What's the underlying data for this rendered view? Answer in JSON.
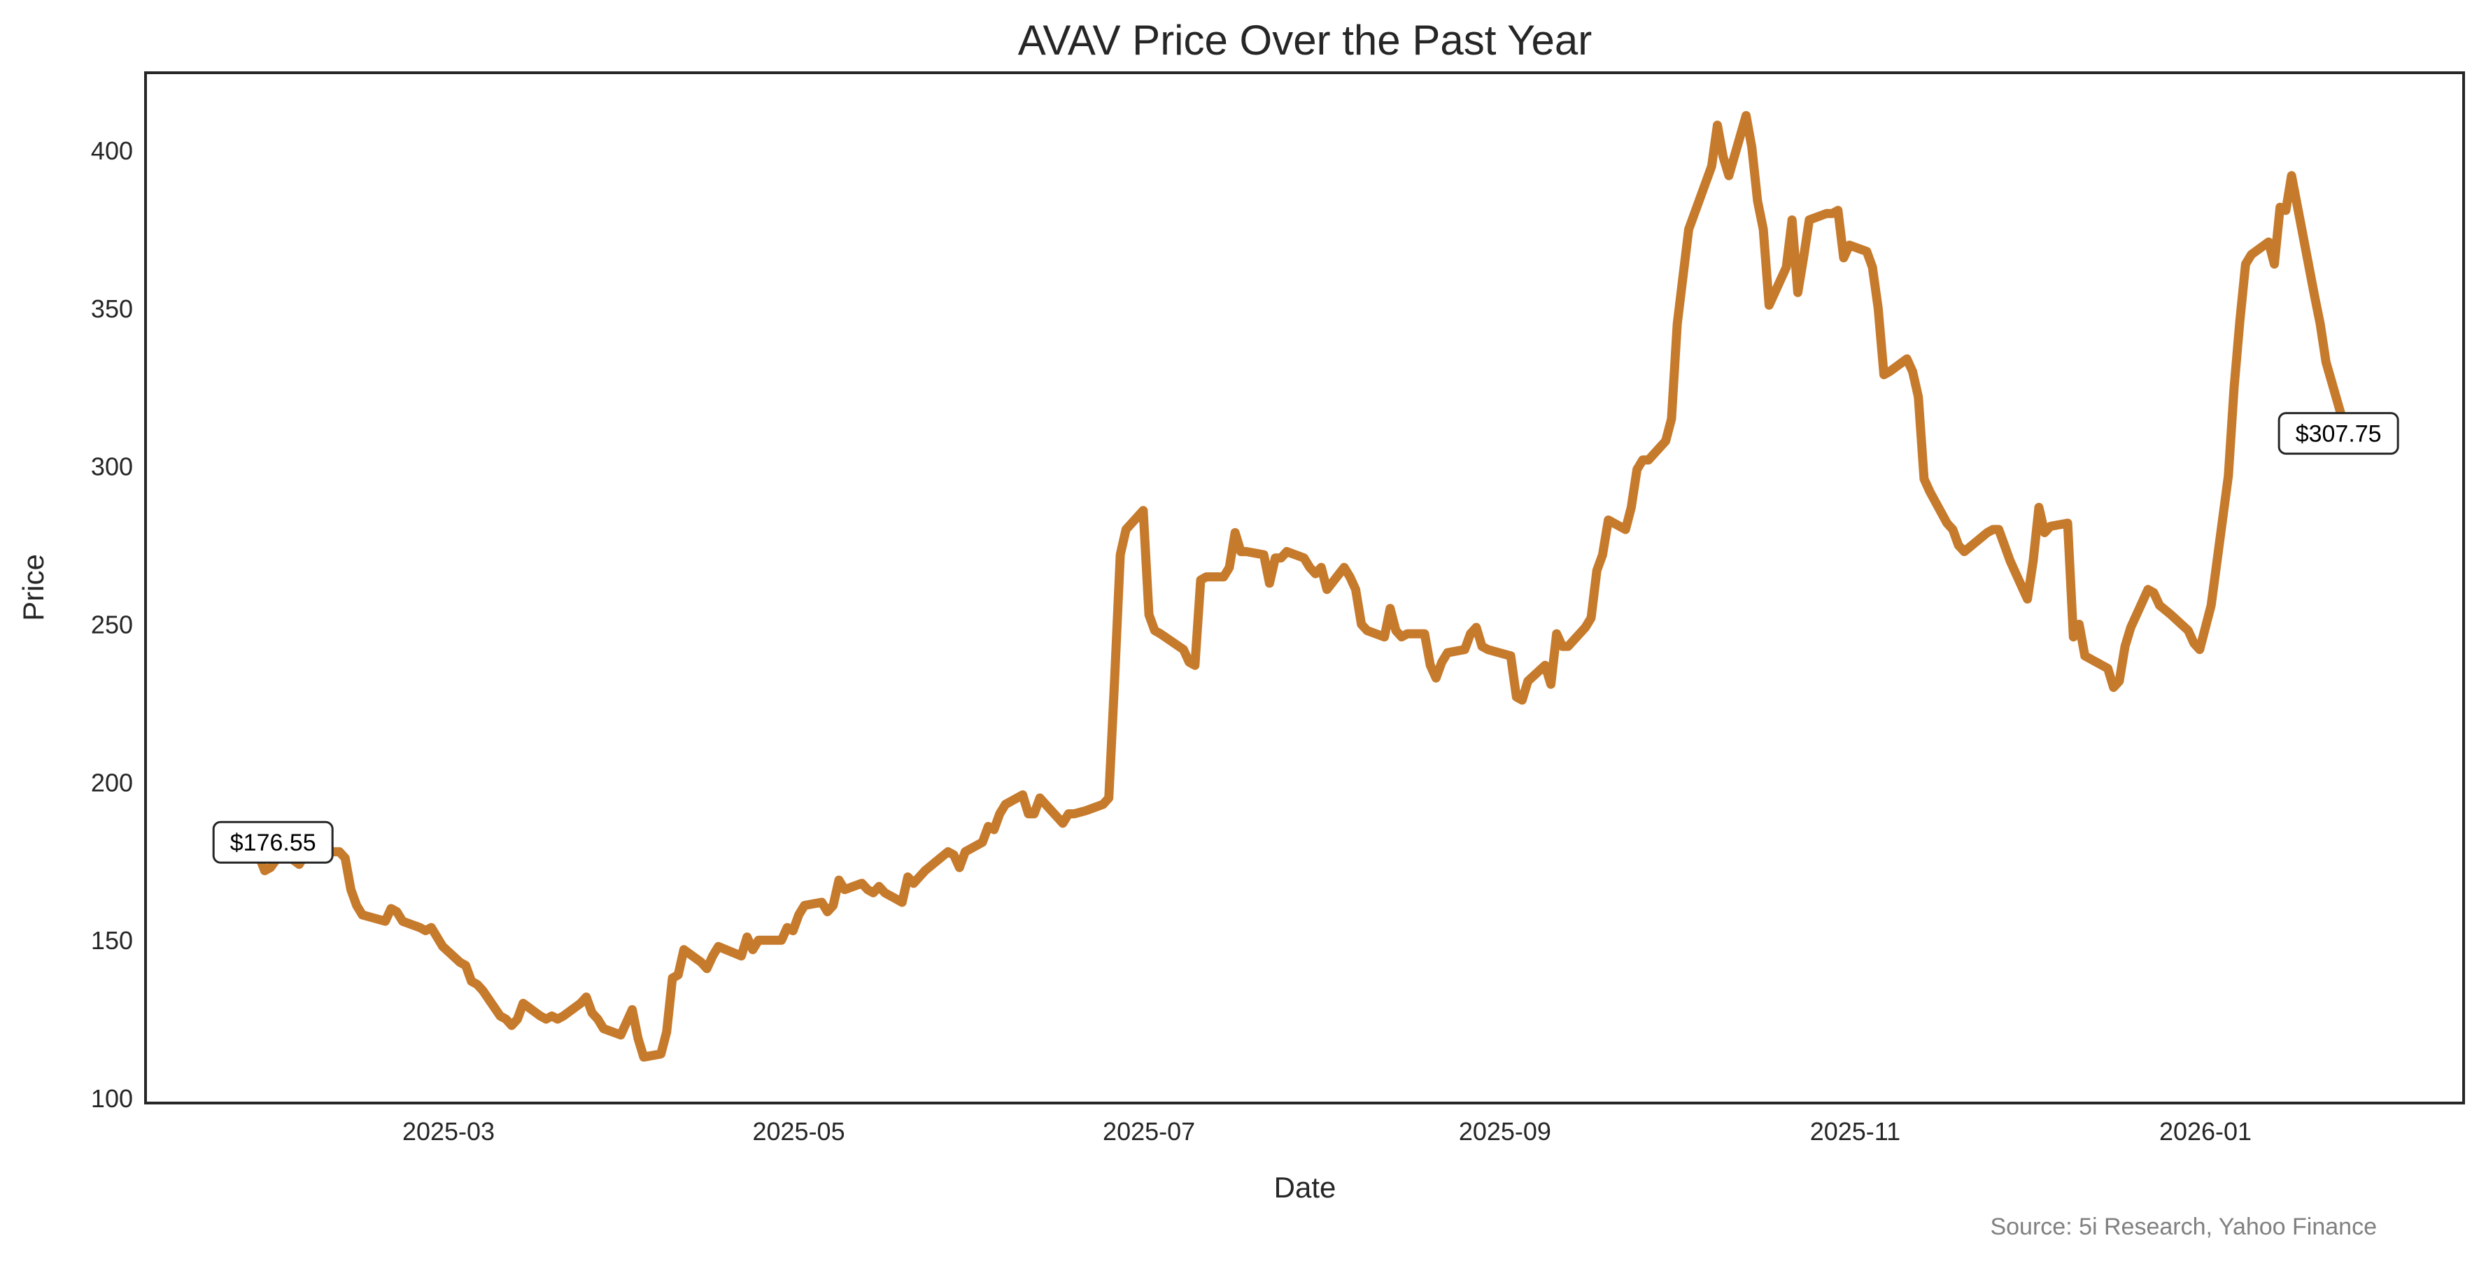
{
  "chart_data": {
    "type": "line",
    "title": "AVAV Price Over the Past Year",
    "xlabel": "Date",
    "ylabel": "Price",
    "source": "Source: 5i Research, Yahoo Finance",
    "line_color": "#C67A2C",
    "grid": false,
    "ylim": [
      97,
      425
    ],
    "xlim": [
      "2025-01-13",
      "2026-02-08"
    ],
    "yticks": [
      100,
      150,
      200,
      250,
      300,
      350,
      400
    ],
    "xticks": [
      "2025-03",
      "2025-05",
      "2025-07",
      "2025-09",
      "2025-11",
      "2026-01"
    ],
    "annotations": [
      {
        "label": "$176.55",
        "date": "2025-01-27",
        "value": 176.55
      },
      {
        "label": "$307.75",
        "date": "2026-01-26",
        "value": 307.75
      }
    ],
    "series": [
      {
        "points": [
          [
            "2025-01-27",
            176.55
          ],
          [
            "2025-01-28",
            172
          ],
          [
            "2025-01-29",
            173
          ],
          [
            "2025-01-31",
            178
          ],
          [
            "2025-02-03",
            174
          ],
          [
            "2025-02-04",
            177
          ],
          [
            "2025-02-05",
            178
          ],
          [
            "2025-02-07",
            178
          ],
          [
            "2025-02-10",
            178
          ],
          [
            "2025-02-11",
            176
          ],
          [
            "2025-02-12",
            166
          ],
          [
            "2025-02-13",
            161
          ],
          [
            "2025-02-14",
            158
          ],
          [
            "2025-02-18",
            156
          ],
          [
            "2025-02-19",
            160
          ],
          [
            "2025-02-20",
            159
          ],
          [
            "2025-02-21",
            156
          ],
          [
            "2025-02-24",
            154
          ],
          [
            "2025-02-25",
            153
          ],
          [
            "2025-02-26",
            154
          ],
          [
            "2025-02-27",
            151
          ],
          [
            "2025-02-28",
            148
          ],
          [
            "2025-03-03",
            143
          ],
          [
            "2025-03-04",
            142
          ],
          [
            "2025-03-05",
            137
          ],
          [
            "2025-03-06",
            136
          ],
          [
            "2025-03-07",
            134
          ],
          [
            "2025-03-10",
            126
          ],
          [
            "2025-03-11",
            125
          ],
          [
            "2025-03-12",
            123
          ],
          [
            "2025-03-13",
            125
          ],
          [
            "2025-03-14",
            130
          ],
          [
            "2025-03-17",
            126
          ],
          [
            "2025-03-18",
            125
          ],
          [
            "2025-03-19",
            126
          ],
          [
            "2025-03-20",
            125
          ],
          [
            "2025-03-21",
            126
          ],
          [
            "2025-03-24",
            130
          ],
          [
            "2025-03-25",
            132
          ],
          [
            "2025-03-26",
            127
          ],
          [
            "2025-03-27",
            125
          ],
          [
            "2025-03-28",
            122
          ],
          [
            "2025-03-31",
            120
          ],
          [
            "2025-04-01",
            124
          ],
          [
            "2025-04-02",
            128
          ],
          [
            "2025-04-03",
            119
          ],
          [
            "2025-04-04",
            113
          ],
          [
            "2025-04-07",
            114
          ],
          [
            "2025-04-08",
            121
          ],
          [
            "2025-04-09",
            138
          ],
          [
            "2025-04-10",
            139
          ],
          [
            "2025-04-11",
            147
          ],
          [
            "2025-04-14",
            143
          ],
          [
            "2025-04-15",
            141
          ],
          [
            "2025-04-16",
            145
          ],
          [
            "2025-04-17",
            148
          ],
          [
            "2025-04-21",
            145
          ],
          [
            "2025-04-22",
            151
          ],
          [
            "2025-04-23",
            147
          ],
          [
            "2025-04-24",
            150
          ],
          [
            "2025-04-25",
            150
          ],
          [
            "2025-04-28",
            150
          ],
          [
            "2025-04-29",
            154
          ],
          [
            "2025-04-30",
            153
          ],
          [
            "2025-05-01",
            158
          ],
          [
            "2025-05-02",
            161
          ],
          [
            "2025-05-05",
            162
          ],
          [
            "2025-05-06",
            159
          ],
          [
            "2025-05-07",
            161
          ],
          [
            "2025-05-08",
            169
          ],
          [
            "2025-05-09",
            166
          ],
          [
            "2025-05-12",
            168
          ],
          [
            "2025-05-13",
            166
          ],
          [
            "2025-05-14",
            165
          ],
          [
            "2025-05-15",
            167
          ],
          [
            "2025-05-16",
            165
          ],
          [
            "2025-05-19",
            162
          ],
          [
            "2025-05-20",
            170
          ],
          [
            "2025-05-21",
            168
          ],
          [
            "2025-05-22",
            170
          ],
          [
            "2025-05-23",
            172
          ],
          [
            "2025-05-27",
            178
          ],
          [
            "2025-05-28",
            177
          ],
          [
            "2025-05-29",
            173
          ],
          [
            "2025-05-30",
            178
          ],
          [
            "2025-06-02",
            181
          ],
          [
            "2025-06-03",
            186
          ],
          [
            "2025-06-04",
            185
          ],
          [
            "2025-06-05",
            190
          ],
          [
            "2025-06-06",
            193
          ],
          [
            "2025-06-09",
            196
          ],
          [
            "2025-06-10",
            190
          ],
          [
            "2025-06-11",
            190
          ],
          [
            "2025-06-12",
            195
          ],
          [
            "2025-06-13",
            193
          ],
          [
            "2025-06-16",
            187
          ],
          [
            "2025-06-17",
            190
          ],
          [
            "2025-06-18",
            190
          ],
          [
            "2025-06-20",
            191
          ],
          [
            "2025-06-23",
            193
          ],
          [
            "2025-06-24",
            195
          ],
          [
            "2025-06-25",
            232
          ],
          [
            "2025-06-26",
            272
          ],
          [
            "2025-06-27",
            280
          ],
          [
            "2025-06-30",
            286
          ],
          [
            "2025-07-01",
            253
          ],
          [
            "2025-07-02",
            248
          ],
          [
            "2025-07-03",
            247
          ],
          [
            "2025-07-07",
            242
          ],
          [
            "2025-07-08",
            238
          ],
          [
            "2025-07-09",
            237
          ],
          [
            "2025-07-10",
            264
          ],
          [
            "2025-07-11",
            265
          ],
          [
            "2025-07-14",
            265
          ],
          [
            "2025-07-15",
            268
          ],
          [
            "2025-07-16",
            279
          ],
          [
            "2025-07-17",
            273
          ],
          [
            "2025-07-18",
            273
          ],
          [
            "2025-07-21",
            272
          ],
          [
            "2025-07-22",
            263
          ],
          [
            "2025-07-23",
            271
          ],
          [
            "2025-07-24",
            271
          ],
          [
            "2025-07-25",
            273
          ],
          [
            "2025-07-28",
            271
          ],
          [
            "2025-07-29",
            268
          ],
          [
            "2025-07-30",
            266
          ],
          [
            "2025-07-31",
            268
          ],
          [
            "2025-08-01",
            261
          ],
          [
            "2025-08-04",
            268
          ],
          [
            "2025-08-05",
            265
          ],
          [
            "2025-08-06",
            261
          ],
          [
            "2025-08-07",
            250
          ],
          [
            "2025-08-08",
            248
          ],
          [
            "2025-08-11",
            246
          ],
          [
            "2025-08-12",
            255
          ],
          [
            "2025-08-13",
            248
          ],
          [
            "2025-08-14",
            246
          ],
          [
            "2025-08-15",
            247
          ],
          [
            "2025-08-18",
            247
          ],
          [
            "2025-08-19",
            237
          ],
          [
            "2025-08-20",
            233
          ],
          [
            "2025-08-21",
            238
          ],
          [
            "2025-08-22",
            241
          ],
          [
            "2025-08-25",
            242
          ],
          [
            "2025-08-26",
            247
          ],
          [
            "2025-08-27",
            249
          ],
          [
            "2025-08-28",
            243
          ],
          [
            "2025-08-29",
            242
          ],
          [
            "2025-09-02",
            240
          ],
          [
            "2025-09-03",
            227
          ],
          [
            "2025-09-04",
            226
          ],
          [
            "2025-09-05",
            232
          ],
          [
            "2025-09-08",
            237
          ],
          [
            "2025-09-09",
            231
          ],
          [
            "2025-09-10",
            247
          ],
          [
            "2025-09-11",
            243
          ],
          [
            "2025-09-12",
            243
          ],
          [
            "2025-09-15",
            249
          ],
          [
            "2025-09-16",
            252
          ],
          [
            "2025-09-17",
            267
          ],
          [
            "2025-09-18",
            272
          ],
          [
            "2025-09-19",
            283
          ],
          [
            "2025-09-22",
            280
          ],
          [
            "2025-09-23",
            287
          ],
          [
            "2025-09-24",
            299
          ],
          [
            "2025-09-25",
            302
          ],
          [
            "2025-09-26",
            302
          ],
          [
            "2025-09-29",
            308
          ],
          [
            "2025-09-30",
            315
          ],
          [
            "2025-10-01",
            345
          ],
          [
            "2025-10-02",
            360
          ],
          [
            "2025-10-03",
            375
          ],
          [
            "2025-10-06",
            390
          ],
          [
            "2025-10-07",
            395
          ],
          [
            "2025-10-08",
            408
          ],
          [
            "2025-10-09",
            398
          ],
          [
            "2025-10-10",
            392
          ],
          [
            "2025-10-13",
            411
          ],
          [
            "2025-10-14",
            401
          ],
          [
            "2025-10-15",
            384
          ],
          [
            "2025-10-16",
            375
          ],
          [
            "2025-10-17",
            351
          ],
          [
            "2025-10-20",
            363
          ],
          [
            "2025-10-21",
            378
          ],
          [
            "2025-10-22",
            355
          ],
          [
            "2025-10-23",
            366
          ],
          [
            "2025-10-24",
            378
          ],
          [
            "2025-10-27",
            380
          ],
          [
            "2025-10-28",
            380
          ],
          [
            "2025-10-29",
            381
          ],
          [
            "2025-10-30",
            366
          ],
          [
            "2025-10-31",
            370
          ],
          [
            "2025-11-03",
            368
          ],
          [
            "2025-11-04",
            363
          ],
          [
            "2025-11-05",
            350
          ],
          [
            "2025-11-06",
            329
          ],
          [
            "2025-11-07",
            330
          ],
          [
            "2025-11-10",
            334
          ],
          [
            "2025-11-11",
            330
          ],
          [
            "2025-11-12",
            322
          ],
          [
            "2025-11-13",
            296
          ],
          [
            "2025-11-14",
            292
          ],
          [
            "2025-11-17",
            282
          ],
          [
            "2025-11-18",
            280
          ],
          [
            "2025-11-19",
            275
          ],
          [
            "2025-11-20",
            273
          ],
          [
            "2025-11-24",
            279
          ],
          [
            "2025-11-25",
            280
          ],
          [
            "2025-11-26",
            280
          ],
          [
            "2025-11-28",
            270
          ],
          [
            "2025-12-01",
            258
          ],
          [
            "2025-12-02",
            270
          ],
          [
            "2025-12-03",
            287
          ],
          [
            "2025-12-04",
            279
          ],
          [
            "2025-12-05",
            281
          ],
          [
            "2025-12-08",
            282
          ],
          [
            "2025-12-09",
            246
          ],
          [
            "2025-12-10",
            250
          ],
          [
            "2025-12-11",
            240
          ],
          [
            "2025-12-15",
            236
          ],
          [
            "2025-12-16",
            230
          ],
          [
            "2025-12-17",
            232
          ],
          [
            "2025-12-18",
            243
          ],
          [
            "2025-12-19",
            249
          ],
          [
            "2025-12-22",
            261
          ],
          [
            "2025-12-23",
            260
          ],
          [
            "2025-12-24",
            256
          ],
          [
            "2025-12-26",
            253
          ],
          [
            "2025-12-29",
            248
          ],
          [
            "2025-12-30",
            244
          ],
          [
            "2025-12-31",
            242
          ],
          [
            "2026-01-02",
            256
          ],
          [
            "2026-01-05",
            297
          ],
          [
            "2026-01-06",
            325
          ],
          [
            "2026-01-07",
            346
          ],
          [
            "2026-01-08",
            364
          ],
          [
            "2026-01-09",
            367
          ],
          [
            "2026-01-12",
            371
          ],
          [
            "2026-01-13",
            364
          ],
          [
            "2026-01-14",
            382
          ],
          [
            "2026-01-15",
            381
          ],
          [
            "2026-01-16",
            392
          ],
          [
            "2026-01-20",
            354
          ],
          [
            "2026-01-21",
            345
          ],
          [
            "2026-01-22",
            333
          ],
          [
            "2026-01-26",
            307.75
          ]
        ]
      }
    ]
  }
}
